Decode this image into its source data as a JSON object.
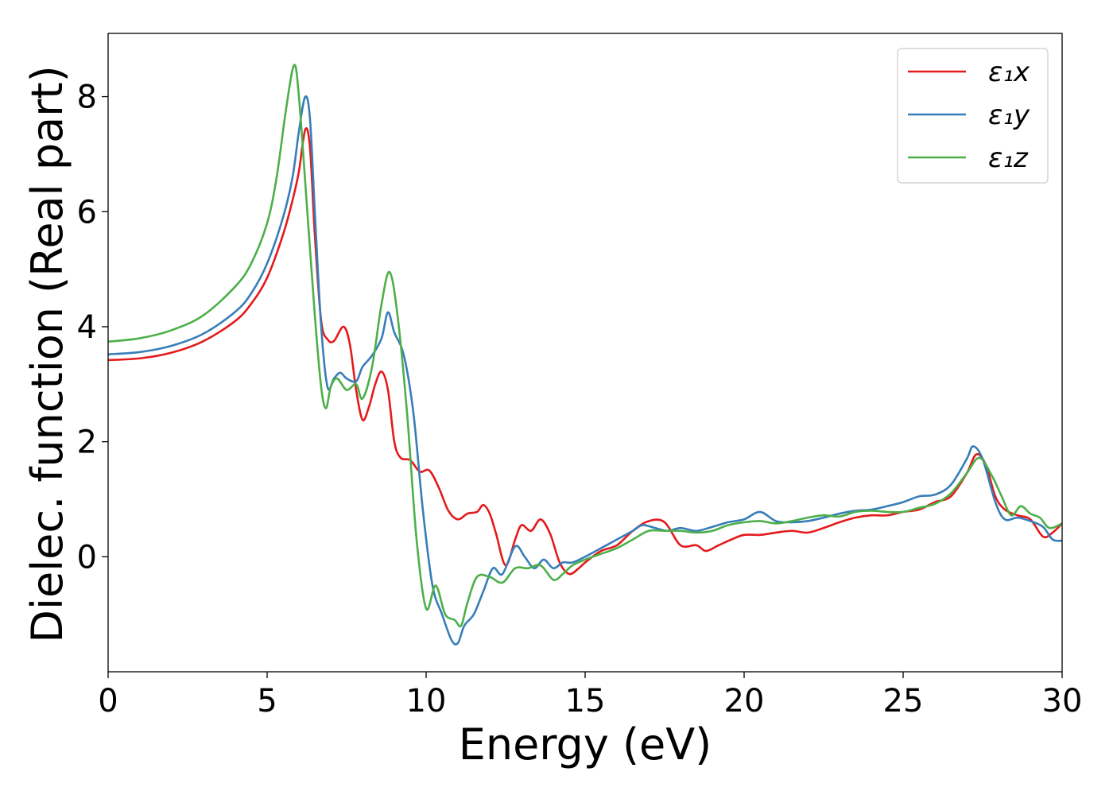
{
  "chart_data": {
    "type": "line",
    "xlabel": "Energy (eV)",
    "ylabel": "Dielec. function (Real part)",
    "xlim": [
      0,
      30
    ],
    "ylim": [
      -2.0,
      9.1
    ],
    "xticks": [
      "0",
      "5",
      "10",
      "15",
      "20",
      "25",
      "30"
    ],
    "yticks": [
      "0",
      "2",
      "4",
      "6",
      "8"
    ],
    "grid": false,
    "legend_position": "top-right",
    "series": [
      {
        "name": "ε₁x",
        "color": "#e41a1c",
        "points": [
          [
            0,
            3.42
          ],
          [
            1,
            3.45
          ],
          [
            2,
            3.55
          ],
          [
            3,
            3.75
          ],
          [
            4,
            4.1
          ],
          [
            4.5,
            4.4
          ],
          [
            5,
            4.85
          ],
          [
            5.5,
            5.6
          ],
          [
            5.8,
            6.2
          ],
          [
            6.0,
            6.7
          ],
          [
            6.2,
            7.43
          ],
          [
            6.35,
            7.1
          ],
          [
            6.5,
            5.6
          ],
          [
            6.7,
            4.1
          ],
          [
            6.9,
            3.78
          ],
          [
            7.1,
            3.75
          ],
          [
            7.4,
            4.0
          ],
          [
            7.6,
            3.7
          ],
          [
            7.8,
            2.9
          ],
          [
            8.0,
            2.38
          ],
          [
            8.2,
            2.6
          ],
          [
            8.4,
            3.0
          ],
          [
            8.6,
            3.22
          ],
          [
            8.8,
            2.9
          ],
          [
            9.0,
            2.0
          ],
          [
            9.2,
            1.72
          ],
          [
            9.5,
            1.68
          ],
          [
            9.8,
            1.48
          ],
          [
            10.1,
            1.5
          ],
          [
            10.4,
            1.2
          ],
          [
            10.7,
            0.8
          ],
          [
            11.0,
            0.65
          ],
          [
            11.3,
            0.75
          ],
          [
            11.6,
            0.78
          ],
          [
            11.8,
            0.9
          ],
          [
            12.0,
            0.75
          ],
          [
            12.2,
            0.4
          ],
          [
            12.5,
            -0.15
          ],
          [
            12.8,
            0.3
          ],
          [
            13.0,
            0.55
          ],
          [
            13.3,
            0.45
          ],
          [
            13.6,
            0.65
          ],
          [
            13.9,
            0.4
          ],
          [
            14.2,
            -0.1
          ],
          [
            14.5,
            -0.3
          ],
          [
            14.8,
            -0.2
          ],
          [
            15.0,
            -0.1
          ],
          [
            15.5,
            0.1
          ],
          [
            16.0,
            0.2
          ],
          [
            16.5,
            0.45
          ],
          [
            17.0,
            0.62
          ],
          [
            17.5,
            0.6
          ],
          [
            18.0,
            0.2
          ],
          [
            18.5,
            0.2
          ],
          [
            18.8,
            0.1
          ],
          [
            19.2,
            0.2
          ],
          [
            19.6,
            0.3
          ],
          [
            20.0,
            0.38
          ],
          [
            20.5,
            0.38
          ],
          [
            21.0,
            0.42
          ],
          [
            21.5,
            0.45
          ],
          [
            22.0,
            0.42
          ],
          [
            22.5,
            0.5
          ],
          [
            23.0,
            0.6
          ],
          [
            23.5,
            0.68
          ],
          [
            24.0,
            0.72
          ],
          [
            24.5,
            0.72
          ],
          [
            25.0,
            0.78
          ],
          [
            25.5,
            0.82
          ],
          [
            26.0,
            0.95
          ],
          [
            26.5,
            1.05
          ],
          [
            27.0,
            1.45
          ],
          [
            27.3,
            1.78
          ],
          [
            27.6,
            1.6
          ],
          [
            27.9,
            1.05
          ],
          [
            28.2,
            0.82
          ],
          [
            28.6,
            0.72
          ],
          [
            29.0,
            0.65
          ],
          [
            29.4,
            0.35
          ],
          [
            29.7,
            0.42
          ],
          [
            30,
            0.58
          ]
        ]
      },
      {
        "name": "ε₁y",
        "color": "#377eb8",
        "points": [
          [
            0,
            3.52
          ],
          [
            1,
            3.56
          ],
          [
            2,
            3.67
          ],
          [
            3,
            3.88
          ],
          [
            4,
            4.26
          ],
          [
            4.5,
            4.58
          ],
          [
            5,
            5.1
          ],
          [
            5.5,
            5.9
          ],
          [
            5.8,
            6.6
          ],
          [
            6.0,
            7.4
          ],
          [
            6.2,
            8.0
          ],
          [
            6.35,
            7.6
          ],
          [
            6.5,
            6.0
          ],
          [
            6.7,
            4.0
          ],
          [
            6.9,
            2.95
          ],
          [
            7.1,
            3.1
          ],
          [
            7.3,
            3.2
          ],
          [
            7.5,
            3.1
          ],
          [
            7.8,
            3.05
          ],
          [
            8.0,
            3.3
          ],
          [
            8.3,
            3.5
          ],
          [
            8.6,
            3.8
          ],
          [
            8.8,
            4.25
          ],
          [
            9.0,
            3.9
          ],
          [
            9.3,
            3.5
          ],
          [
            9.6,
            2.5
          ],
          [
            9.9,
            0.8
          ],
          [
            10.2,
            -0.5
          ],
          [
            10.5,
            -1.0
          ],
          [
            10.8,
            -1.45
          ],
          [
            11.0,
            -1.5
          ],
          [
            11.2,
            -1.2
          ],
          [
            11.5,
            -1.0
          ],
          [
            11.8,
            -0.6
          ],
          [
            12.1,
            -0.2
          ],
          [
            12.4,
            -0.3
          ],
          [
            12.8,
            0.18
          ],
          [
            13.1,
            0.0
          ],
          [
            13.4,
            -0.2
          ],
          [
            13.7,
            -0.05
          ],
          [
            14.0,
            -0.2
          ],
          [
            14.3,
            -0.1
          ],
          [
            14.6,
            -0.1
          ],
          [
            15.0,
            0.0
          ],
          [
            15.5,
            0.15
          ],
          [
            16.0,
            0.3
          ],
          [
            16.5,
            0.45
          ],
          [
            16.8,
            0.55
          ],
          [
            17.2,
            0.5
          ],
          [
            17.6,
            0.45
          ],
          [
            18.0,
            0.5
          ],
          [
            18.5,
            0.45
          ],
          [
            19.0,
            0.52
          ],
          [
            19.5,
            0.6
          ],
          [
            20.0,
            0.65
          ],
          [
            20.5,
            0.78
          ],
          [
            21.0,
            0.62
          ],
          [
            21.5,
            0.6
          ],
          [
            22.0,
            0.62
          ],
          [
            22.5,
            0.68
          ],
          [
            23.0,
            0.75
          ],
          [
            23.5,
            0.8
          ],
          [
            24.0,
            0.82
          ],
          [
            24.5,
            0.88
          ],
          [
            25.0,
            0.95
          ],
          [
            25.5,
            1.05
          ],
          [
            26.0,
            1.08
          ],
          [
            26.5,
            1.25
          ],
          [
            27.0,
            1.7
          ],
          [
            27.2,
            1.92
          ],
          [
            27.5,
            1.7
          ],
          [
            27.9,
            0.95
          ],
          [
            28.2,
            0.65
          ],
          [
            28.6,
            0.68
          ],
          [
            29.0,
            0.62
          ],
          [
            29.4,
            0.52
          ],
          [
            29.7,
            0.3
          ],
          [
            30,
            0.28
          ]
        ]
      },
      {
        "name": "ε₁z",
        "color": "#4daf4a",
        "points": [
          [
            0,
            3.74
          ],
          [
            1,
            3.8
          ],
          [
            2,
            3.94
          ],
          [
            3,
            4.2
          ],
          [
            4,
            4.7
          ],
          [
            4.5,
            5.1
          ],
          [
            5,
            5.8
          ],
          [
            5.3,
            6.6
          ],
          [
            5.6,
            7.8
          ],
          [
            5.85,
            8.55
          ],
          [
            6.0,
            8.0
          ],
          [
            6.2,
            6.5
          ],
          [
            6.5,
            4.2
          ],
          [
            6.7,
            2.95
          ],
          [
            6.85,
            2.58
          ],
          [
            7.0,
            2.95
          ],
          [
            7.2,
            3.1
          ],
          [
            7.5,
            2.9
          ],
          [
            7.8,
            3.0
          ],
          [
            8.0,
            2.75
          ],
          [
            8.3,
            3.3
          ],
          [
            8.6,
            4.4
          ],
          [
            8.85,
            4.95
          ],
          [
            9.1,
            4.2
          ],
          [
            9.4,
            2.5
          ],
          [
            9.7,
            0.3
          ],
          [
            10.0,
            -0.9
          ],
          [
            10.3,
            -0.5
          ],
          [
            10.6,
            -1.0
          ],
          [
            10.9,
            -1.1
          ],
          [
            11.1,
            -1.2
          ],
          [
            11.3,
            -0.8
          ],
          [
            11.6,
            -0.35
          ],
          [
            12.0,
            -0.35
          ],
          [
            12.4,
            -0.45
          ],
          [
            12.8,
            -0.2
          ],
          [
            13.2,
            -0.2
          ],
          [
            13.6,
            -0.15
          ],
          [
            14.0,
            -0.4
          ],
          [
            14.3,
            -0.3
          ],
          [
            14.6,
            -0.15
          ],
          [
            15.0,
            -0.05
          ],
          [
            15.5,
            0.05
          ],
          [
            16.0,
            0.15
          ],
          [
            16.5,
            0.3
          ],
          [
            17.0,
            0.45
          ],
          [
            17.5,
            0.45
          ],
          [
            18.0,
            0.45
          ],
          [
            18.5,
            0.42
          ],
          [
            19.0,
            0.45
          ],
          [
            19.5,
            0.55
          ],
          [
            20.0,
            0.6
          ],
          [
            20.5,
            0.62
          ],
          [
            21.0,
            0.58
          ],
          [
            21.5,
            0.62
          ],
          [
            22.0,
            0.68
          ],
          [
            22.5,
            0.72
          ],
          [
            23.0,
            0.7
          ],
          [
            23.5,
            0.78
          ],
          [
            24.0,
            0.8
          ],
          [
            24.5,
            0.78
          ],
          [
            25.0,
            0.78
          ],
          [
            25.5,
            0.85
          ],
          [
            26.0,
            0.92
          ],
          [
            26.5,
            1.1
          ],
          [
            27.0,
            1.45
          ],
          [
            27.4,
            1.72
          ],
          [
            27.8,
            1.4
          ],
          [
            28.1,
            1.05
          ],
          [
            28.4,
            0.72
          ],
          [
            28.7,
            0.88
          ],
          [
            29.0,
            0.75
          ],
          [
            29.3,
            0.68
          ],
          [
            29.6,
            0.5
          ],
          [
            30,
            0.58
          ]
        ]
      }
    ]
  }
}
